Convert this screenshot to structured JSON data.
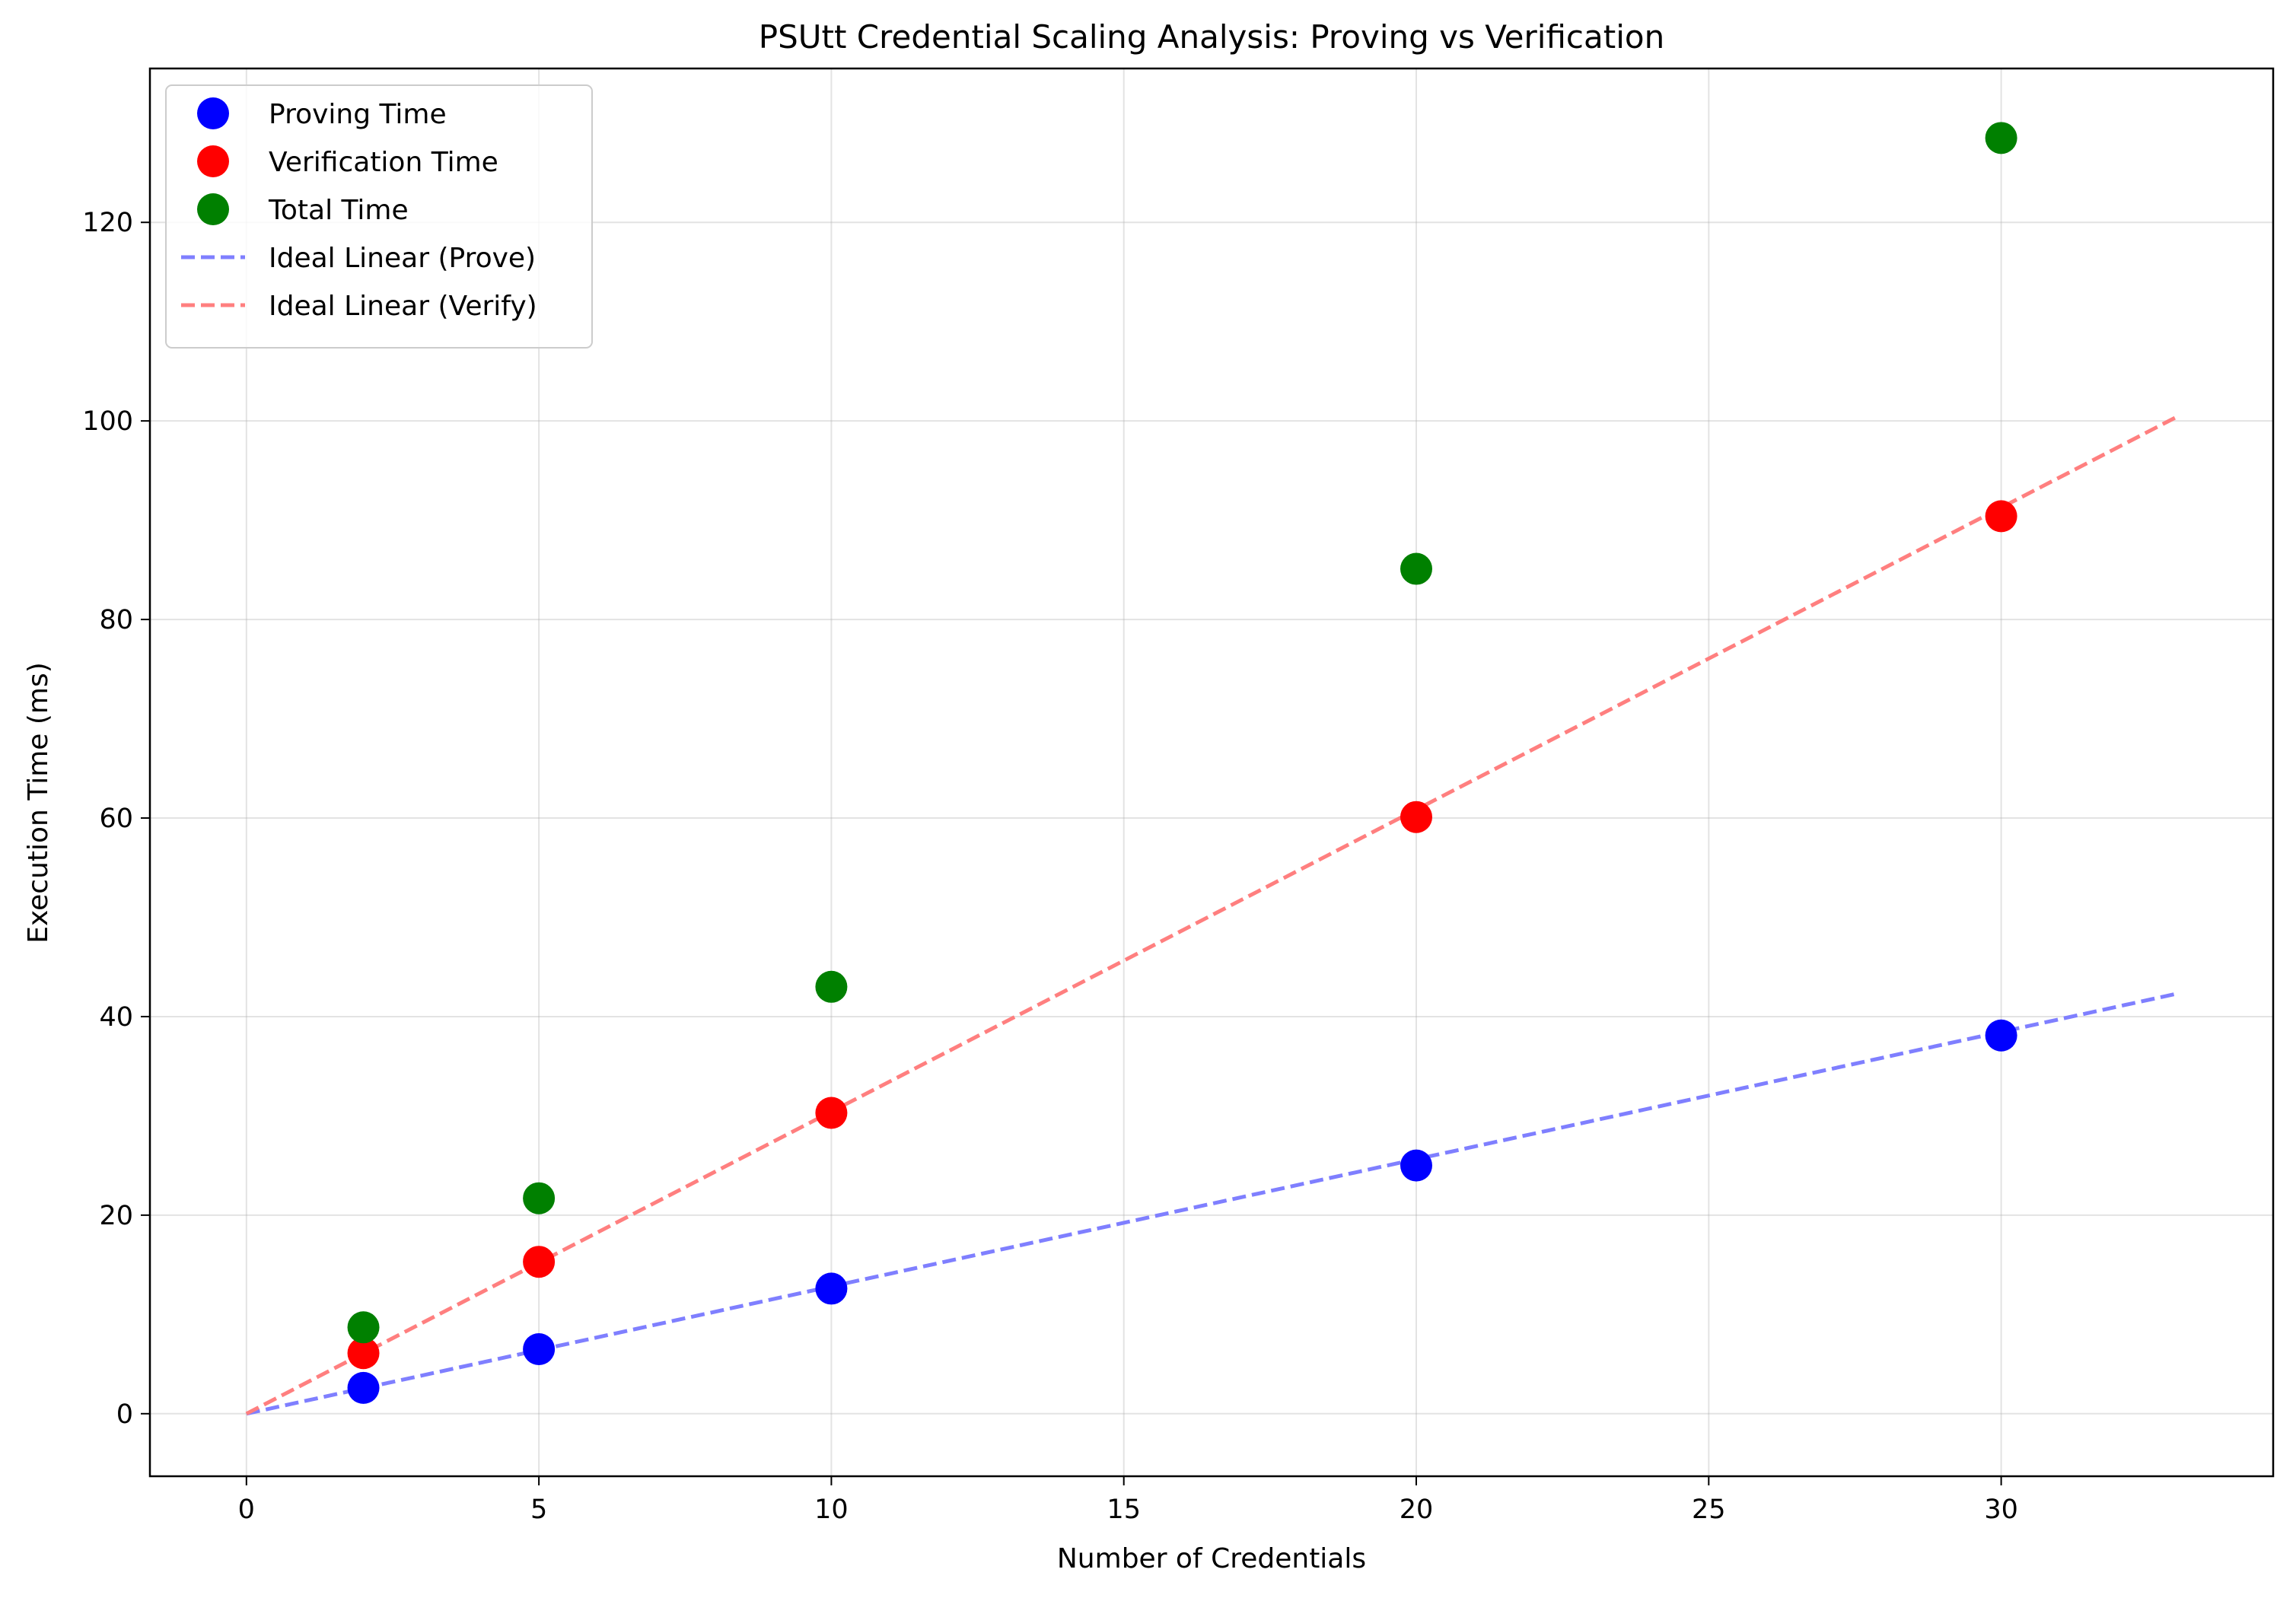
{
  "chart_data": {
    "type": "scatter",
    "title": "PSUtt Credential Scaling Analysis: Proving vs Verification",
    "xlabel": "Number of Credentials",
    "ylabel": "Execution Time (ms)",
    "xlim": [
      -1.65,
      34.65
    ],
    "ylim": [
      -6.3,
      135.5
    ],
    "xticks": [
      0,
      5,
      10,
      15,
      20,
      25,
      30
    ],
    "yticks": [
      0,
      20,
      40,
      60,
      80,
      100,
      120
    ],
    "grid": true,
    "legend_position": "upper-left",
    "series": [
      {
        "name": "Proving Time",
        "kind": "scatter",
        "color": "#0000ff",
        "x": [
          2,
          5,
          10,
          20,
          30
        ],
        "y": [
          2.6,
          6.5,
          12.6,
          25.0,
          38.1
        ]
      },
      {
        "name": "Verification Time",
        "kind": "scatter",
        "color": "#ff0000",
        "x": [
          2,
          5,
          10,
          20,
          30
        ],
        "y": [
          6.1,
          15.3,
          30.3,
          60.1,
          90.4
        ]
      },
      {
        "name": "Total Time",
        "kind": "scatter",
        "color": "#008000",
        "x": [
          2,
          5,
          10,
          20,
          30
        ],
        "y": [
          8.7,
          21.7,
          43.0,
          85.1,
          128.5
        ]
      },
      {
        "name": "Ideal Linear (Prove)",
        "kind": "dashed-line",
        "color": "#7f7fff",
        "x": [
          0,
          33
        ],
        "y": [
          0,
          42.3
        ]
      },
      {
        "name": "Ideal Linear (Verify)",
        "kind": "dashed-line",
        "color": "#ff7f7f",
        "x": [
          0,
          33
        ],
        "y": [
          0,
          100.4
        ]
      }
    ]
  }
}
